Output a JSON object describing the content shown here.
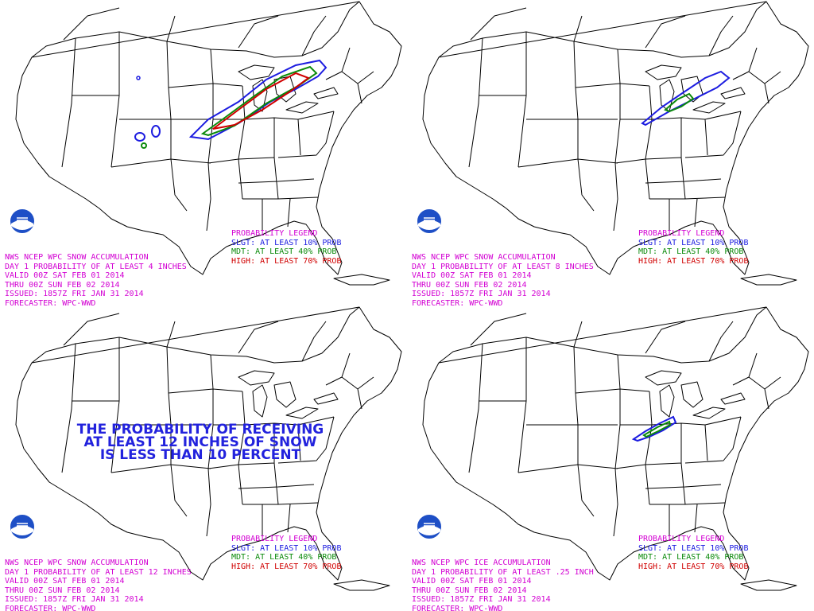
{
  "colors": {
    "slight": "#1c1ce0",
    "moderate": "#0a8a0a",
    "high": "#d00000",
    "text": "#d300d3"
  },
  "legend": {
    "title": "PROBABILITY LEGEND",
    "slight": "SLGT: AT LEAST 10% PROB",
    "moderate": "MDT: AT LEAST 40% PROB",
    "high": "HIGH: AT LEAST 70% PROB"
  },
  "panels": [
    {
      "product": "NWS NCEP WPC SNOW ACCUMULATION",
      "threshold": "DAY 1 PROBABILITY OF AT LEAST 4 INCHES",
      "valid": "VALID 00Z SAT FEB 01 2014",
      "thru": "THRU 00Z SUN FEB 02 2014",
      "issued": "ISSUED: 1857Z FRI JAN 31 2014",
      "forecaster": "FORECASTER: WPC-WWD"
    },
    {
      "product": "NWS NCEP WPC SNOW ACCUMULATION",
      "threshold": "DAY 1 PROBABILITY OF AT LEAST 8 INCHES",
      "valid": "VALID 00Z SAT FEB 01 2014",
      "thru": "THRU 00Z SUN FEB 02 2014",
      "issued": "ISSUED: 1857Z FRI JAN 31 2014",
      "forecaster": "FORECASTER: WPC-WWD"
    },
    {
      "product": "NWS NCEP WPC SNOW ACCUMULATION",
      "threshold": "DAY 1 PROBABILITY OF AT LEAST 12 INCHES",
      "valid": "VALID 00Z SAT FEB 01 2014",
      "thru": "THRU 00Z SUN FEB 02 2014",
      "issued": "ISSUED: 1857Z FRI JAN 31 2014",
      "forecaster": "FORECASTER: WPC-WWD",
      "notice": [
        "THE PROBABILITY OF RECEIVING",
        "AT LEAST 12 INCHES OF SNOW",
        "IS LESS THAN 10 PERCENT"
      ]
    },
    {
      "product": "NWS NCEP WPC ICE ACCUMULATION",
      "threshold": "DAY 1 PROBABILITY OF AT LEAST .25 INCH",
      "valid": "VALID 00Z SAT FEB 01 2014",
      "thru": "THRU 00Z SUN FEB 02 2014",
      "issued": "ISSUED: 1857Z FRI JAN 31 2014",
      "forecaster": "FORECASTER: WPC-WWD"
    }
  ]
}
